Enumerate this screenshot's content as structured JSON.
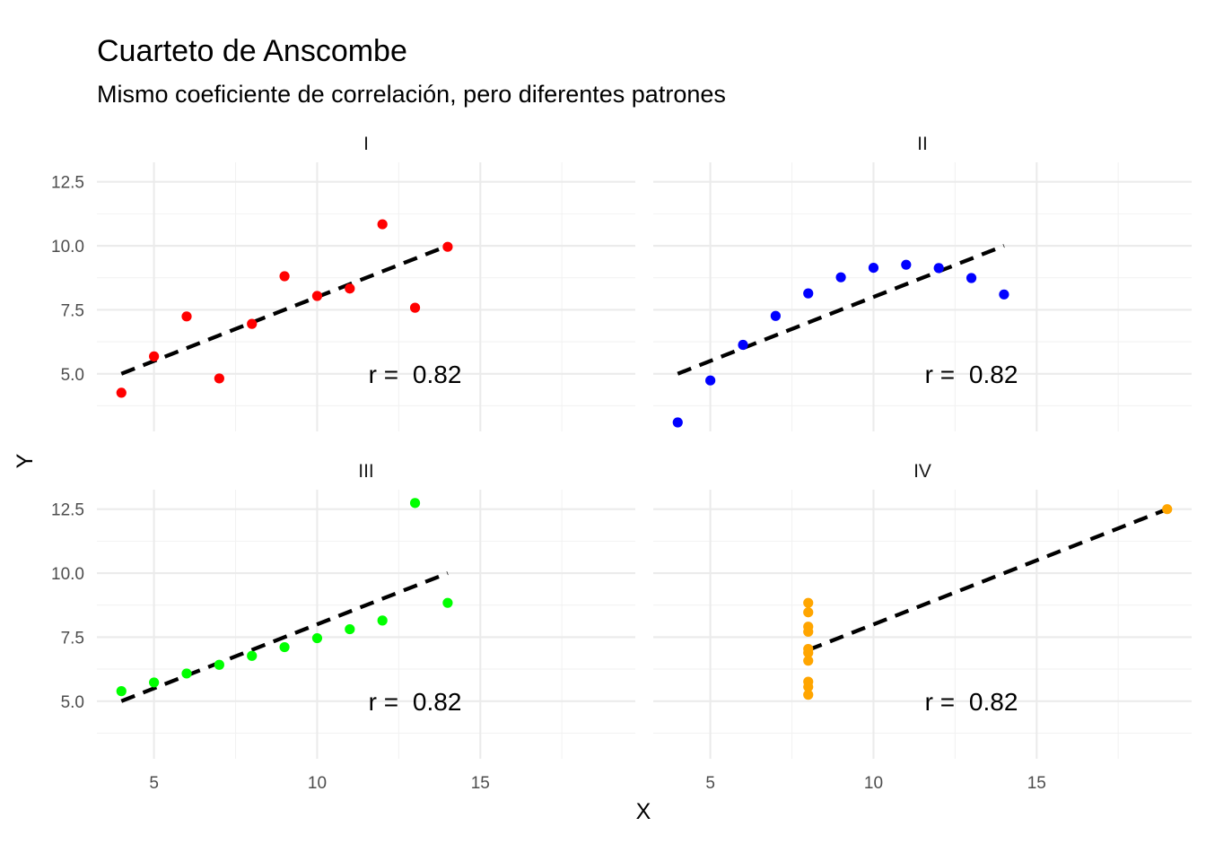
{
  "chart_data": {
    "type": "scatter",
    "title": "Cuarteto de Anscombe",
    "subtitle": "Mismo coeficiente de correlación, pero diferentes patrones",
    "xlabel": "X",
    "ylabel": "Y",
    "xlim": [
      3.25,
      19.75
    ],
    "ylim": [
      2.75,
      13.26
    ],
    "x_ticks": [
      5,
      10,
      15
    ],
    "y_ticks": [
      5.0,
      7.5,
      10.0,
      12.5
    ],
    "x_tick_labels": [
      "5",
      "10",
      "15"
    ],
    "y_tick_labels": [
      "5.0",
      "7.5",
      "10.0",
      "12.5"
    ],
    "grid": true,
    "annotation_prefix": "r = ",
    "annotation_position": {
      "x": 13,
      "y": 5.0
    },
    "regression": {
      "intercept": 3.0,
      "slope": 0.5,
      "linetype": "dashed",
      "color": "#000000"
    },
    "panels": [
      {
        "label": "I",
        "color": "#ff0000",
        "r": "0.82",
        "x": [
          10,
          8,
          13,
          9,
          11,
          14,
          6,
          4,
          12,
          7,
          5
        ],
        "y": [
          8.04,
          6.95,
          7.58,
          8.81,
          8.33,
          9.96,
          7.24,
          4.26,
          10.84,
          4.82,
          5.68
        ]
      },
      {
        "label": "II",
        "color": "#0000ff",
        "r": "0.82",
        "x": [
          10,
          8,
          13,
          9,
          11,
          14,
          6,
          4,
          12,
          7,
          5
        ],
        "y": [
          9.14,
          8.14,
          8.74,
          8.77,
          9.26,
          8.1,
          6.13,
          3.1,
          9.13,
          7.26,
          4.74
        ]
      },
      {
        "label": "III",
        "color": "#00ff00",
        "r": "0.82",
        "x": [
          10,
          8,
          13,
          9,
          11,
          14,
          6,
          4,
          12,
          7,
          5
        ],
        "y": [
          7.46,
          6.77,
          12.74,
          7.11,
          7.81,
          8.84,
          6.08,
          5.39,
          8.15,
          6.42,
          5.73
        ]
      },
      {
        "label": "IV",
        "color": "#ffa500",
        "r": "0.82",
        "x": [
          8,
          8,
          8,
          8,
          8,
          8,
          8,
          19,
          8,
          8,
          8
        ],
        "y": [
          6.58,
          5.76,
          7.71,
          8.84,
          8.47,
          7.04,
          5.25,
          12.5,
          5.56,
          7.91,
          6.89
        ]
      }
    ]
  }
}
